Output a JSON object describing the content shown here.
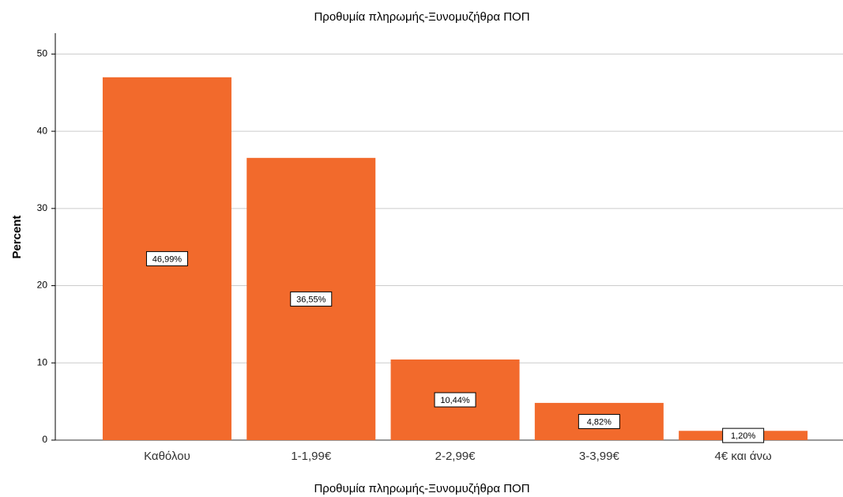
{
  "chart_data": {
    "type": "bar",
    "title": "Προθυμία πληρωμής-Ξυνομυζήθρα ΠΟΠ",
    "x_label": "Προθυμία πληρωμής-Ξυνομυζήθρα ΠΟΠ",
    "y_label": "Percent",
    "categories": [
      "Καθόλου",
      "1-1,99€",
      "2-2,99€",
      "3-3,99€",
      "4€ και άνω"
    ],
    "values": [
      46.99,
      36.55,
      10.44,
      4.82,
      1.2
    ],
    "value_labels": [
      "46,99%",
      "36,55%",
      "10,44%",
      "4,82%",
      "1,20%"
    ],
    "color": "#f26a2c",
    "ylim": [
      0,
      52.7
    ],
    "yticks": [
      0,
      10,
      20,
      30,
      40,
      50
    ],
    "grid": true
  }
}
